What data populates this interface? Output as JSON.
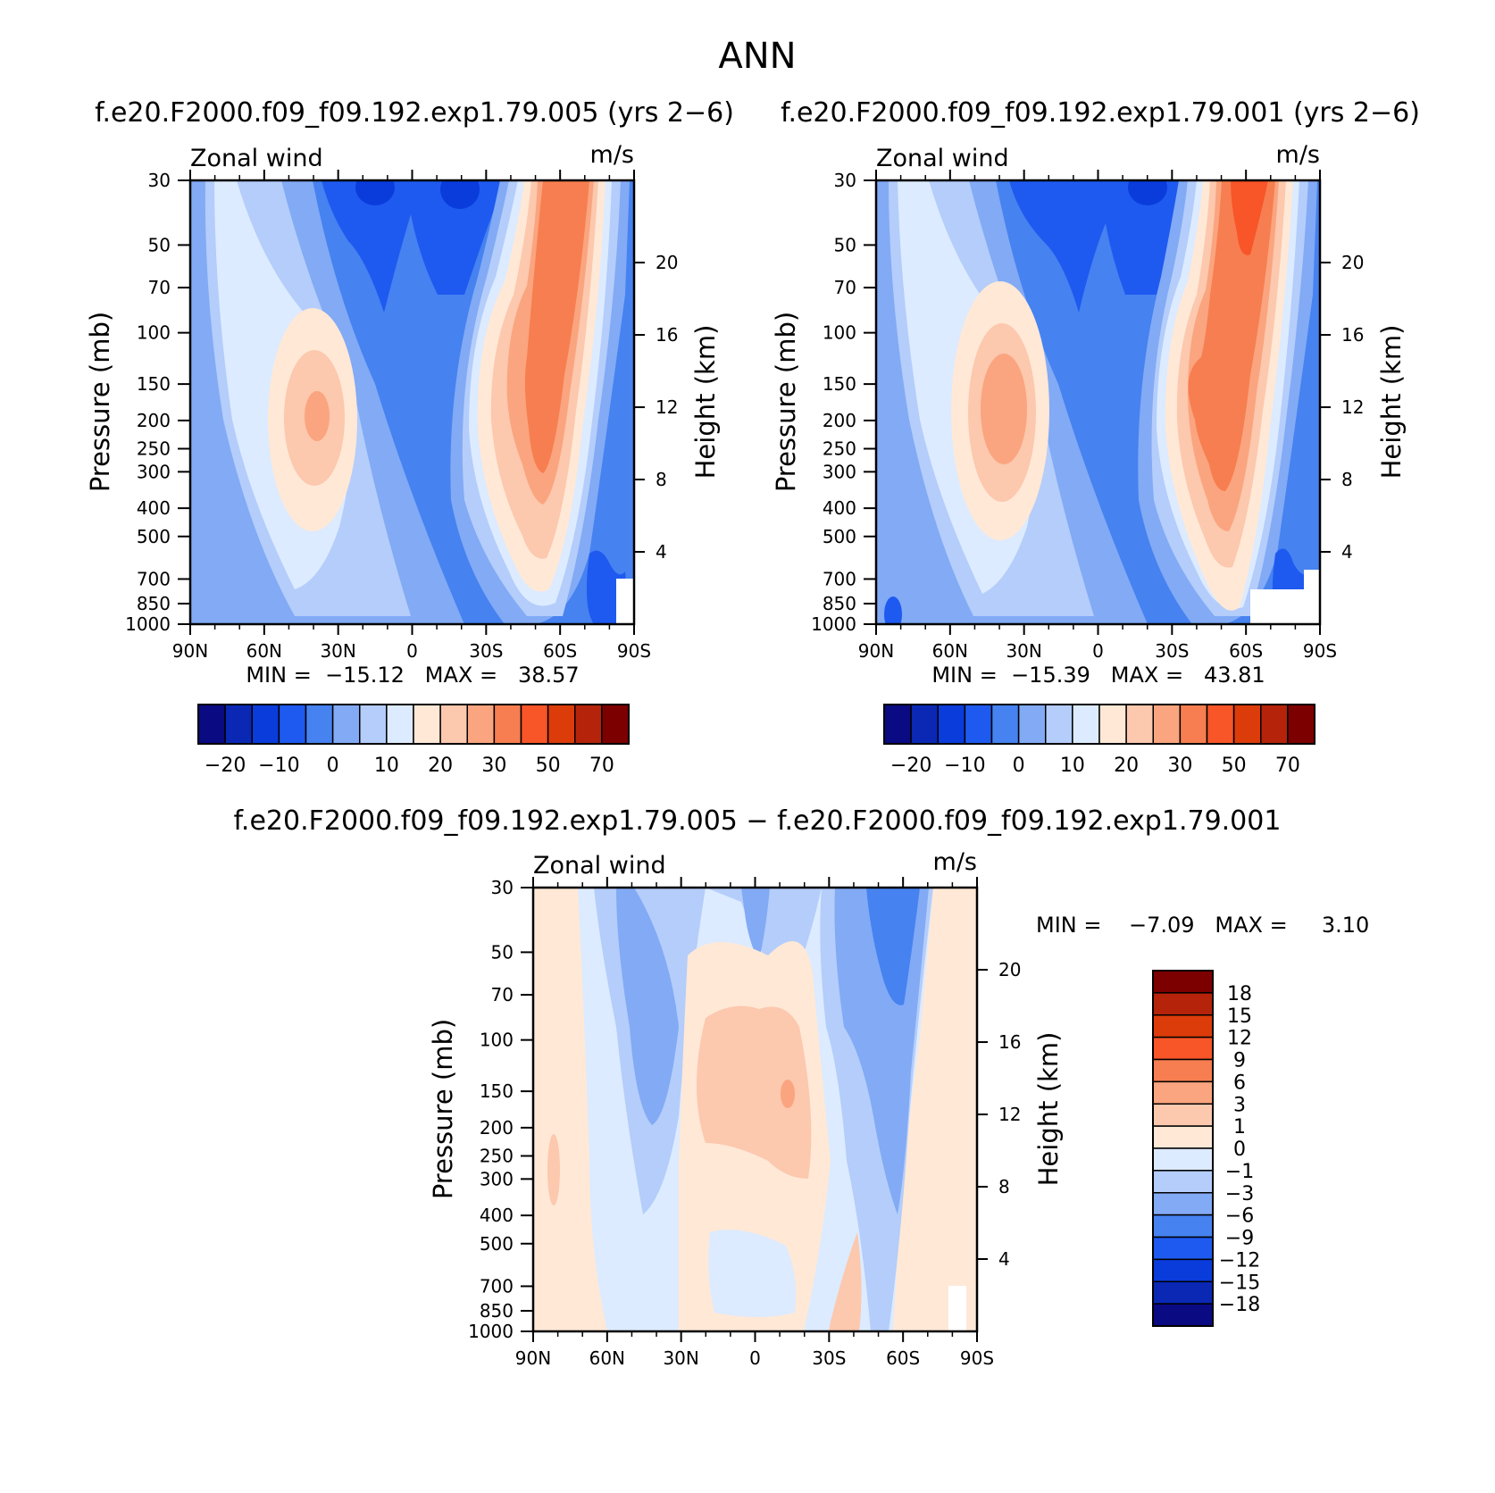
{
  "figure": {
    "title": "ANN",
    "diff_title": "f.e20.F2000.f09_f09.192.exp1.79.005 − f.e20.F2000.f09_f09.192.exp1.79.001"
  },
  "chart_data": [
    {
      "type": "heatmap",
      "case_title": "f.e20.F2000.f09_f09.192.exp1.79.005 (yrs 2−6)",
      "variable": "Zonal wind",
      "units": "m/s",
      "ylabel": "Pressure (mb)",
      "ylabel2": "Height (km)",
      "x_ticks": [
        "90N",
        "60N",
        "30N",
        "0",
        "30S",
        "60S",
        "90S"
      ],
      "y_ticks": [
        30,
        50,
        70,
        100,
        150,
        200,
        250,
        300,
        400,
        500,
        700,
        850,
        1000
      ],
      "y2_ticks": [
        4,
        8,
        12,
        16,
        20
      ],
      "ylim": [
        1000,
        30
      ],
      "stats_text": "MIN =  −15.12   MAX =   38.57",
      "min": -15.12,
      "max": 38.57,
      "jet_nh": {
        "lat": 40,
        "pressure": 200,
        "speed": 20
      },
      "jet_sh": {
        "lat": -50,
        "pressure": 200,
        "speed": 38.57
      },
      "colorbar": {
        "levels": [
          "−20",
          "−10",
          "0",
          "10",
          "20",
          "30",
          "50",
          "70"
        ],
        "colors": [
          "#0A0A82",
          "#0A28B4",
          "#0A3CDC",
          "#1E5AF0",
          "#4682F0",
          "#82AAF5",
          "#B4CDFA",
          "#DCEBFF",
          "#FFE8D6",
          "#FCC8AE",
          "#FAA57F",
          "#F77E50",
          "#F85528",
          "#DC3C0A",
          "#B4230A",
          "#7D0000"
        ]
      }
    },
    {
      "type": "heatmap",
      "case_title": "f.e20.F2000.f09_f09.192.exp1.79.001 (yrs 2−6)",
      "variable": "Zonal wind",
      "units": "m/s",
      "ylabel": "Pressure (mb)",
      "ylabel2": "Height (km)",
      "x_ticks": [
        "90N",
        "60N",
        "30N",
        "0",
        "30S",
        "60S",
        "90S"
      ],
      "y_ticks": [
        30,
        50,
        70,
        100,
        150,
        200,
        250,
        300,
        400,
        500,
        700,
        850,
        1000
      ],
      "y2_ticks": [
        4,
        8,
        12,
        16,
        20
      ],
      "ylim": [
        1000,
        30
      ],
      "stats_text": "MIN =  −15.39   MAX =   43.81",
      "min": -15.39,
      "max": 43.81,
      "jet_nh": {
        "lat": 40,
        "pressure": 200,
        "speed": 24
      },
      "jet_sh": {
        "lat": -52,
        "pressure": 200,
        "speed": 43.81
      },
      "colorbar": {
        "levels": [
          "−20",
          "−10",
          "0",
          "10",
          "20",
          "30",
          "50",
          "70"
        ],
        "colors": [
          "#0A0A82",
          "#0A28B4",
          "#0A3CDC",
          "#1E5AF0",
          "#4682F0",
          "#82AAF5",
          "#B4CDFA",
          "#DCEBFF",
          "#FFE8D6",
          "#FCC8AE",
          "#FAA57F",
          "#F77E50",
          "#F85528",
          "#DC3C0A",
          "#B4230A",
          "#7D0000"
        ]
      }
    },
    {
      "type": "heatmap",
      "variable": "Zonal wind",
      "units": "m/s",
      "ylabel": "Pressure (mb)",
      "ylabel2": "Height (km)",
      "x_ticks": [
        "90N",
        "60N",
        "30N",
        "0",
        "30S",
        "60S",
        "90S"
      ],
      "y_ticks": [
        30,
        50,
        70,
        100,
        150,
        200,
        250,
        300,
        400,
        500,
        700,
        850,
        1000
      ],
      "y2_ticks": [
        4,
        8,
        12,
        16,
        20
      ],
      "ylim": [
        1000,
        30
      ],
      "stats_text": "MIN =    −7.09   MAX =     3.10",
      "min": -7.09,
      "max": 3.1,
      "colorbar": {
        "levels": [
          "18",
          "15",
          "12",
          "9",
          "6",
          "3",
          "1",
          "0",
          "−1",
          "−3",
          "−6",
          "−9",
          "−12",
          "−15",
          "−18"
        ],
        "colors": [
          "#7D0000",
          "#B4230A",
          "#DC3C0A",
          "#F85528",
          "#F77E50",
          "#FAA57F",
          "#FCC8AE",
          "#FFE8D6",
          "#DCEBFF",
          "#B4CDFA",
          "#82AAF5",
          "#4682F0",
          "#1E5AF0",
          "#0A3CDC",
          "#0A28B4",
          "#0A0A82"
        ]
      }
    }
  ]
}
